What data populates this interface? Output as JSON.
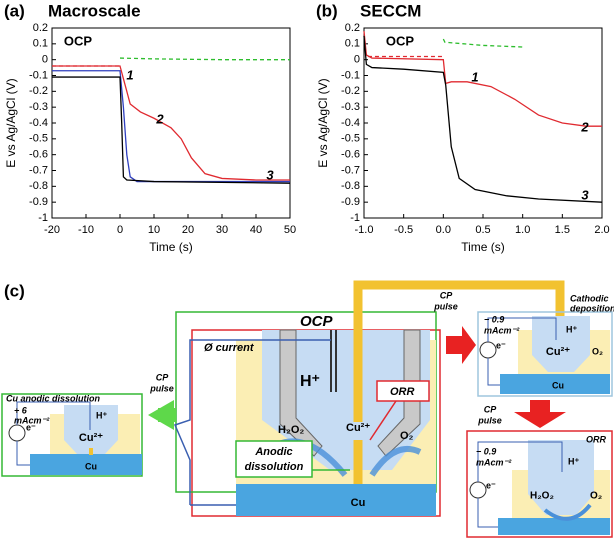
{
  "chart_data": [
    {
      "type": "line",
      "panel": "(a)",
      "title": "Macroscale",
      "x_label": "Time (s)",
      "y_label": "E vs Ag/AgCl (V)",
      "xlim": [
        -20,
        50
      ],
      "xticks": [
        -20,
        -10,
        0,
        10,
        20,
        30,
        40,
        50
      ],
      "ylim": [
        -1,
        0.2
      ],
      "yticks": [
        -1,
        -0.9,
        -0.8,
        -0.7,
        -0.6,
        -0.5,
        -0.4,
        -0.3,
        -0.2,
        -0.1,
        0,
        0.1,
        0.2
      ],
      "annotations": [
        "OCP",
        "1",
        "2",
        "3"
      ],
      "series": [
        {
          "color": "#e02a30",
          "dashed": true,
          "x": [
            -20,
            0
          ],
          "values": [
            -0.04,
            -0.04
          ]
        },
        {
          "color": "#2ebd2e",
          "dashed": true,
          "x": [
            0,
            10,
            30,
            50
          ],
          "values": [
            0.01,
            0.005,
            0.0,
            0.0
          ]
        },
        {
          "color": "#e02a30",
          "x": [
            -20,
            0,
            1,
            3,
            6,
            10,
            15,
            18,
            21,
            25,
            30,
            40,
            50
          ],
          "values": [
            -0.04,
            -0.04,
            -0.12,
            -0.28,
            -0.33,
            -0.37,
            -0.43,
            -0.5,
            -0.62,
            -0.72,
            -0.75,
            -0.76,
            -0.76
          ]
        },
        {
          "color": "#2f3fbf",
          "x": [
            -20,
            0,
            1,
            2,
            3,
            5,
            10,
            50
          ],
          "values": [
            -0.07,
            -0.07,
            -0.3,
            -0.6,
            -0.74,
            -0.77,
            -0.77,
            -0.77
          ]
        },
        {
          "color": "#000000",
          "x": [
            -20,
            0,
            0.5,
            1,
            2,
            10,
            50
          ],
          "values": [
            -0.11,
            -0.11,
            -0.4,
            -0.74,
            -0.76,
            -0.77,
            -0.78
          ]
        }
      ]
    },
    {
      "type": "line",
      "panel": "(b)",
      "title": "SECCM",
      "x_label": "Time (s)",
      "y_label": "E vs Ag/AgCl (V)",
      "xlim": [
        -1,
        2
      ],
      "xticks": [
        {
          "value": -1,
          "label": "-1.0"
        },
        -0.5,
        {
          "value": 0,
          "label": "0.0"
        },
        0.5,
        {
          "value": 1,
          "label": "1.0"
        },
        1.5,
        {
          "value": 2,
          "label": "2.0"
        }
      ],
      "ylim": [
        -1,
        0.2
      ],
      "yticks": [
        -1,
        -0.9,
        -0.8,
        -0.7,
        -0.6,
        -0.5,
        -0.4,
        -0.3,
        -0.2,
        -0.1,
        0,
        0.1,
        0.2
      ],
      "annotations": [
        "OCP",
        "1",
        "2",
        "3"
      ],
      "series": [
        {
          "color": "#e02a30",
          "dashed": true,
          "x": [
            -0.95,
            0
          ],
          "values": [
            0.02,
            0.02
          ]
        },
        {
          "color": "#2ebd2e",
          "dashed": true,
          "x": [
            0,
            0.02,
            0.5,
            1
          ],
          "values": [
            0.13,
            0.11,
            0.09,
            0.08
          ]
        },
        {
          "color": "#e02a30",
          "x": [
            -1,
            -0.97,
            -0.9,
            0,
            0.03,
            0.1,
            0.3,
            0.6,
            0.9,
            1.2,
            1.5,
            1.8,
            2
          ],
          "values": [
            0.18,
            0.03,
            0.01,
            0.0,
            -0.15,
            -0.14,
            -0.14,
            -0.17,
            -0.25,
            -0.35,
            -0.4,
            -0.42,
            -0.42
          ]
        },
        {
          "color": "#000000",
          "x": [
            -1,
            -0.97,
            -0.9,
            -0.5,
            0,
            0.03,
            0.1,
            0.2,
            0.4,
            0.8,
            1.2,
            2
          ],
          "values": [
            0.15,
            -0.03,
            -0.05,
            -0.06,
            -0.08,
            -0.16,
            -0.55,
            -0.75,
            -0.82,
            -0.86,
            -0.88,
            -0.9
          ]
        }
      ]
    }
  ],
  "diagram": {
    "label": "(c)",
    "ocp": {
      "title": "OCP",
      "current": "Ø current",
      "h": "H⁺",
      "h2o2": "H₂O₂",
      "cu2": "Cu²⁺",
      "o2": "O₂",
      "orr": "ORR",
      "anodic": [
        "Anodic",
        "dissolution"
      ],
      "cu": "Cu"
    },
    "left": {
      "pulse": [
        "CP",
        "pulse"
      ],
      "title": "Cu anodic dissolution",
      "current": [
        "+ 6",
        "mAcm⁻²"
      ],
      "e": "e⁻",
      "h": "H⁺",
      "cu2": "Cu²⁺",
      "cu": "Cu"
    },
    "top_right": {
      "pulse": [
        "CP",
        "pulse"
      ],
      "current": [
        "− 0.9",
        "mAcm⁻²"
      ],
      "title": [
        "Cathodic",
        "deposition"
      ],
      "e": "e⁻",
      "h": "H⁺",
      "cu2": "Cu²⁺",
      "o2": "O₂",
      "cu": "Cu"
    },
    "bottom_right": {
      "pulse": [
        "CP",
        "pulse"
      ],
      "current": [
        "− 0.9",
        "mAcm⁻²"
      ],
      "title": "ORR",
      "e": "e⁻",
      "h": "H⁺",
      "h2o2": "H₂O₂",
      "o2": "O₂"
    }
  }
}
